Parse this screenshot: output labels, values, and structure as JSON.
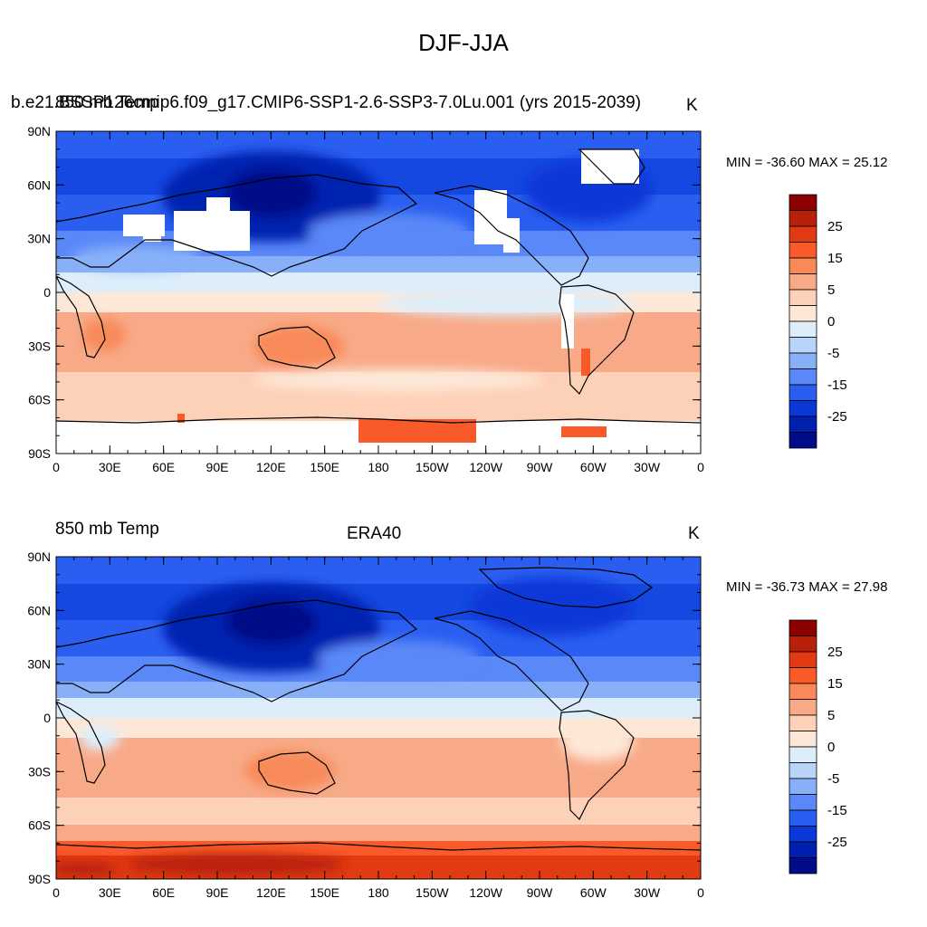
{
  "figure": {
    "title": "DJF-JJA"
  },
  "panels": [
    {
      "left_title": "850 mb Temp",
      "run_title": "b.e21.BSSP126cmip6.f09_g17.CMIP6-SSP1-2.6-SSP3-7.0Lu.001 (yrs 2015-2039)",
      "center_title": "",
      "units": "K",
      "stats": "MIN = -36.60 MAX =  25.12"
    },
    {
      "left_title": "850 mb Temp",
      "run_title": "",
      "center_title": "ERA40",
      "units": "K",
      "stats": "MIN = -36.73 MAX =  27.98"
    }
  ],
  "axes": {
    "lon_labels": [
      "0",
      "30E",
      "60E",
      "90E",
      "120E",
      "150E",
      "180",
      "150W",
      "120W",
      "90W",
      "60W",
      "30W",
      "0"
    ],
    "lat_labels": [
      "90N",
      "60N",
      "30N",
      "0",
      "30S",
      "60S",
      "90S"
    ]
  },
  "colorbar": {
    "labels": [
      "25",
      "15",
      "5",
      "0",
      "-5",
      "-15",
      "-25"
    ],
    "colors": [
      "#8b0000",
      "#b8200a",
      "#e23a12",
      "#f85a2a",
      "#f88a5a",
      "#f8aa88",
      "#fdd0b8",
      "#fde8d8",
      "#ddeefa",
      "#b8d4f8",
      "#88b0f8",
      "#5a88f8",
      "#2a5ef0",
      "#0a38d8",
      "#0020b0",
      "#000c88"
    ]
  },
  "chart_data": {
    "type": "heatmap",
    "title": "DJF-JJA",
    "variable": "850 mb Temp",
    "units": "K",
    "contour_levels": [
      -35,
      -30,
      -25,
      -20,
      -15,
      -10,
      -5,
      -2,
      0,
      2,
      5,
      10,
      15,
      20,
      25,
      30
    ],
    "xlim": [
      0,
      360
    ],
    "ylim": [
      -90,
      90
    ],
    "panels": [
      {
        "name": "b.e21.BSSP126cmip6.f09_g17.CMIP6-SSP1-2.6-SSP3-7.0Lu.001 (yrs 2015-2039)",
        "min": -36.6,
        "max": 25.12
      },
      {
        "name": "ERA40",
        "min": -36.73,
        "max": 27.98
      }
    ]
  }
}
